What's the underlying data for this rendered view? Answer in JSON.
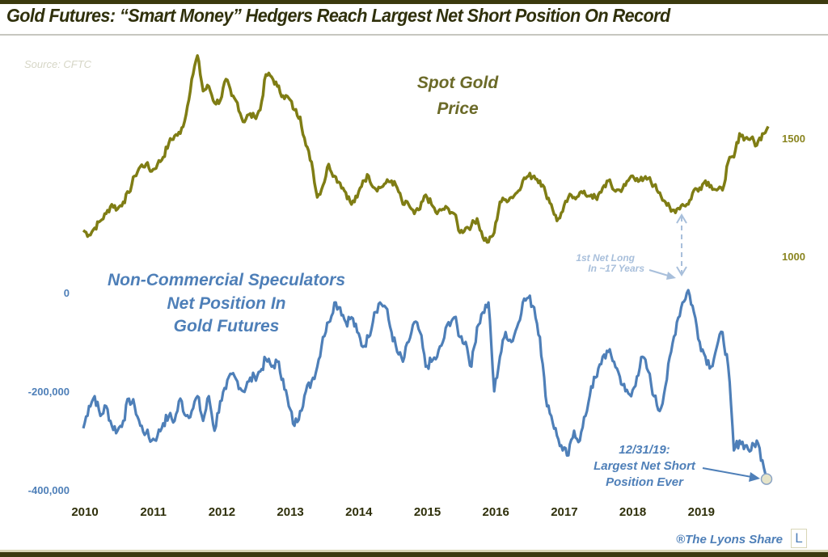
{
  "header": {
    "title": "Gold Futures: “Smart Money” Hedgers Reach Largest Net Short Position On Record"
  },
  "footer": {
    "brand": "®The Lyons Share",
    "brand_logo_letter": "L"
  },
  "chart_data": {
    "type": "line",
    "title": "Gold Futures: “Smart Money” Hedgers Reach Largest Net Short Position On Record",
    "source": "Source: CFTC",
    "x_tick_labels": [
      "2010",
      "2011",
      "2012",
      "2013",
      "2014",
      "2015",
      "2016",
      "2017",
      "2018",
      "2019"
    ],
    "x_range": [
      2010.0,
      2020.0
    ],
    "grid": false,
    "colors": {
      "gold": "#7f7d14",
      "spec": "#4e7fb8",
      "dark": "#2f300b"
    },
    "series": [
      {
        "name": "Spot Gold Price",
        "label_lines": [
          "Spot Gold",
          "Price"
        ],
        "axis": "right",
        "y_ticks": [
          1000,
          1500
        ],
        "y_tick_labels": [
          "1000",
          "1500"
        ],
        "x_start": 2010.0,
        "x_step_months": 1,
        "values": [
          1110,
          1090,
          1120,
          1150,
          1180,
          1220,
          1200,
          1230,
          1270,
          1340,
          1380,
          1390,
          1360,
          1390,
          1420,
          1480,
          1510,
          1520,
          1600,
          1750,
          1850,
          1700,
          1720,
          1650,
          1660,
          1750,
          1680,
          1650,
          1570,
          1600,
          1590,
          1620,
          1770,
          1760,
          1720,
          1680,
          1670,
          1620,
          1590,
          1470,
          1400,
          1250,
          1300,
          1390,
          1340,
          1310,
          1270,
          1220,
          1250,
          1320,
          1340,
          1290,
          1290,
          1310,
          1320,
          1290,
          1220,
          1220,
          1180,
          1200,
          1260,
          1220,
          1180,
          1200,
          1200,
          1180,
          1100,
          1120,
          1130,
          1160,
          1080,
          1060,
          1100,
          1230,
          1240,
          1250,
          1270,
          1320,
          1340,
          1340,
          1320,
          1270,
          1220,
          1150,
          1190,
          1250,
          1250,
          1270,
          1260,
          1260,
          1240,
          1290,
          1320,
          1280,
          1280,
          1300,
          1340,
          1330,
          1320,
          1330,
          1300,
          1270,
          1230,
          1190,
          1200,
          1220,
          1220,
          1280,
          1290,
          1320,
          1300,
          1280,
          1280,
          1400,
          1420,
          1520,
          1500,
          1500,
          1470,
          1520,
          1550
        ]
      },
      {
        "name": "Non-Commercial Speculators Net Position In Gold Futures",
        "label_lines": [
          "Non-Commercial Speculators",
          "Net  Position  In",
          "Gold Futures"
        ],
        "axis": "left",
        "y_ticks": [
          0,
          -200000,
          -400000
        ],
        "y_tick_labels": [
          "0",
          "-200,000",
          "-400,000"
        ],
        "x_start": 2010.0,
        "x_step_months": 1,
        "values": [
          -275000,
          -230000,
          -210000,
          -250000,
          -230000,
          -270000,
          -280000,
          -260000,
          -215000,
          -230000,
          -270000,
          -285000,
          -300000,
          -290000,
          -265000,
          -250000,
          -260000,
          -215000,
          -250000,
          -240000,
          -210000,
          -260000,
          -210000,
          -280000,
          -220000,
          -195000,
          -165000,
          -180000,
          -200000,
          -180000,
          -170000,
          -160000,
          -135000,
          -150000,
          -140000,
          -175000,
          -230000,
          -270000,
          -240000,
          -200000,
          -180000,
          -150000,
          -90000,
          -60000,
          -20000,
          -30000,
          -60000,
          -50000,
          -80000,
          -110000,
          -90000,
          -40000,
          -20000,
          -30000,
          -80000,
          -120000,
          -140000,
          -100000,
          -60000,
          -80000,
          -150000,
          -140000,
          -130000,
          -100000,
          -60000,
          -50000,
          -90000,
          -100000,
          -150000,
          -70000,
          -40000,
          -20000,
          -200000,
          -130000,
          -80000,
          -100000,
          -70000,
          -20000,
          -10000,
          -30000,
          -90000,
          -210000,
          -250000,
          -290000,
          -320000,
          -330000,
          -280000,
          -300000,
          -250000,
          -190000,
          -170000,
          -130000,
          -120000,
          -140000,
          -170000,
          -200000,
          -210000,
          -170000,
          -130000,
          -160000,
          -210000,
          -240000,
          -190000,
          -120000,
          -60000,
          -20000,
          5000,
          -40000,
          -100000,
          -130000,
          -150000,
          -110000,
          -80000,
          -150000,
          -320000,
          -300000,
          -310000,
          -320000,
          -300000,
          -340000,
          -378000
        ]
      }
    ],
    "annotations": [
      {
        "text_lines": [
          "1st Net Long",
          "In ~17 Years"
        ],
        "x": 2018.75,
        "y": 5000,
        "series": "spec"
      },
      {
        "text_lines": [
          "12/31/19:",
          "Largest Net Short",
          "Position Ever"
        ],
        "x": 2020.0,
        "y": -378000,
        "series": "spec"
      }
    ]
  }
}
